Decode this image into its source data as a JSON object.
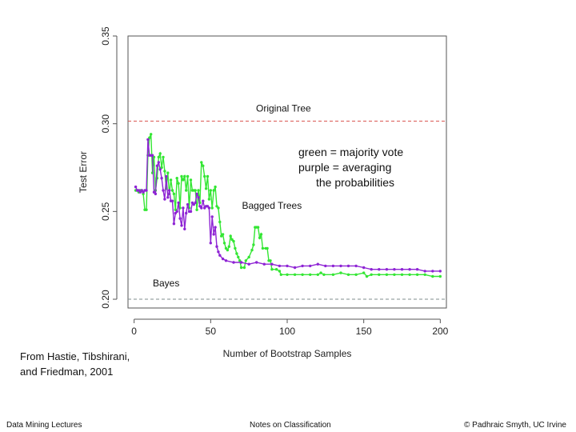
{
  "chart_data": {
    "type": "line",
    "title": "",
    "xlabel": "Number of Bootstrap Samples",
    "ylabel": "Test Error",
    "xlim": [
      -4,
      204
    ],
    "ylim": [
      0.195,
      0.35
    ],
    "xticks": [
      0,
      50,
      100,
      150,
      200
    ],
    "xtick_labels": [
      "0",
      "50",
      "100",
      "150",
      "200"
    ],
    "yticks": [
      0.2,
      0.25,
      0.3,
      0.35
    ],
    "ytick_labels": [
      "0.20",
      "0.25",
      "0.30",
      "0.35"
    ],
    "grid": false,
    "reference_lines": [
      {
        "label": "Original Tree",
        "y": 0.3015,
        "color": "#d9534f",
        "dash": "4,3"
      },
      {
        "label": "Bayes",
        "y": 0.2,
        "color": "#7f8c8d",
        "dash": "4,3"
      }
    ],
    "annotations": [
      {
        "text": "Bagged Trees",
        "x": 90,
        "y": 0.2515
      }
    ],
    "series": [
      {
        "color": "#33e633",
        "points": [
          [
            1,
            0.262
          ],
          [
            2,
            0.262
          ],
          [
            3,
            0.261
          ],
          [
            4,
            0.262
          ],
          [
            5,
            0.262
          ],
          [
            6,
            0.26
          ],
          [
            7,
            0.251
          ],
          [
            8,
            0.251
          ],
          [
            9,
            0.282
          ],
          [
            10,
            0.292
          ],
          [
            11,
            0.294
          ],
          [
            12,
            0.272
          ],
          [
            13,
            0.281
          ],
          [
            14,
            0.262
          ],
          [
            15,
            0.269
          ],
          [
            16,
            0.281
          ],
          [
            17,
            0.283
          ],
          [
            18,
            0.275
          ],
          [
            19,
            0.281
          ],
          [
            20,
            0.273
          ],
          [
            21,
            0.263
          ],
          [
            22,
            0.272
          ],
          [
            23,
            0.26
          ],
          [
            24,
            0.268
          ],
          [
            25,
            0.262
          ],
          [
            26,
            0.26
          ],
          [
            27,
            0.251
          ],
          [
            28,
            0.269
          ],
          [
            29,
            0.266
          ],
          [
            30,
            0.252
          ],
          [
            31,
            0.27
          ],
          [
            32,
            0.268
          ],
          [
            33,
            0.27
          ],
          [
            34,
            0.262
          ],
          [
            35,
            0.27
          ],
          [
            36,
            0.252
          ],
          [
            37,
            0.268
          ],
          [
            38,
            0.262
          ],
          [
            39,
            0.262
          ],
          [
            40,
            0.262
          ],
          [
            41,
            0.251
          ],
          [
            42,
            0.262
          ],
          [
            43,
            0.255
          ],
          [
            44,
            0.278
          ],
          [
            45,
            0.276
          ],
          [
            46,
            0.27
          ],
          [
            47,
            0.263
          ],
          [
            48,
            0.27
          ],
          [
            49,
            0.257
          ],
          [
            50,
            0.262
          ],
          [
            51,
            0.252
          ],
          [
            52,
            0.262
          ],
          [
            53,
            0.264
          ],
          [
            54,
            0.253
          ],
          [
            55,
            0.252
          ],
          [
            56,
            0.244
          ],
          [
            57,
            0.236
          ],
          [
            58,
            0.237
          ],
          [
            59,
            0.232
          ],
          [
            60,
            0.229
          ],
          [
            61,
            0.228
          ],
          [
            62,
            0.23
          ],
          [
            63,
            0.236
          ],
          [
            64,
            0.234
          ],
          [
            65,
            0.233
          ],
          [
            66,
            0.229
          ],
          [
            67,
            0.226
          ],
          [
            68,
            0.224
          ],
          [
            69,
            0.222
          ],
          [
            70,
            0.218
          ],
          [
            72,
            0.218
          ],
          [
            73,
            0.222
          ],
          [
            75,
            0.224
          ],
          [
            77,
            0.228
          ],
          [
            78,
            0.231
          ],
          [
            79,
            0.241
          ],
          [
            80,
            0.241
          ],
          [
            81,
            0.241
          ],
          [
            82,
            0.235
          ],
          [
            83,
            0.237
          ],
          [
            84,
            0.229
          ],
          [
            86,
            0.229
          ],
          [
            87,
            0.229
          ],
          [
            88,
            0.222
          ],
          [
            89,
            0.222
          ],
          [
            90,
            0.217
          ],
          [
            93,
            0.217
          ],
          [
            95,
            0.216
          ],
          [
            96,
            0.214
          ],
          [
            100,
            0.214
          ],
          [
            105,
            0.214
          ],
          [
            110,
            0.214
          ],
          [
            115,
            0.214
          ],
          [
            120,
            0.214
          ],
          [
            122,
            0.215
          ],
          [
            124,
            0.214
          ],
          [
            130,
            0.214
          ],
          [
            135,
            0.215
          ],
          [
            140,
            0.214
          ],
          [
            145,
            0.214
          ],
          [
            150,
            0.215
          ],
          [
            152,
            0.213
          ],
          [
            155,
            0.214
          ],
          [
            160,
            0.214
          ],
          [
            165,
            0.214
          ],
          [
            170,
            0.214
          ],
          [
            175,
            0.214
          ],
          [
            180,
            0.214
          ],
          [
            185,
            0.214
          ],
          [
            190,
            0.214
          ],
          [
            195,
            0.213
          ],
          [
            200,
            0.213
          ]
        ]
      },
      {
        "color": "#8e24d4",
        "points": [
          [
            1,
            0.264
          ],
          [
            2,
            0.262
          ],
          [
            3,
            0.262
          ],
          [
            4,
            0.261
          ],
          [
            5,
            0.262
          ],
          [
            6,
            0.261
          ],
          [
            7,
            0.262
          ],
          [
            8,
            0.262
          ],
          [
            9,
            0.291
          ],
          [
            10,
            0.282
          ],
          [
            11,
            0.282
          ],
          [
            12,
            0.282
          ],
          [
            13,
            0.261
          ],
          [
            14,
            0.26
          ],
          [
            15,
            0.276
          ],
          [
            16,
            0.278
          ],
          [
            17,
            0.274
          ],
          [
            18,
            0.269
          ],
          [
            19,
            0.262
          ],
          [
            20,
            0.257
          ],
          [
            21,
            0.27
          ],
          [
            22,
            0.258
          ],
          [
            23,
            0.262
          ],
          [
            24,
            0.256
          ],
          [
            25,
            0.256
          ],
          [
            26,
            0.243
          ],
          [
            27,
            0.249
          ],
          [
            28,
            0.25
          ],
          [
            29,
            0.255
          ],
          [
            30,
            0.246
          ],
          [
            31,
            0.242
          ],
          [
            32,
            0.252
          ],
          [
            33,
            0.24
          ],
          [
            34,
            0.249
          ],
          [
            35,
            0.254
          ],
          [
            36,
            0.25
          ],
          [
            37,
            0.25
          ],
          [
            38,
            0.255
          ],
          [
            39,
            0.254
          ],
          [
            40,
            0.255
          ],
          [
            41,
            0.26
          ],
          [
            42,
            0.258
          ],
          [
            43,
            0.253
          ],
          [
            44,
            0.252
          ],
          [
            45,
            0.256
          ],
          [
            46,
            0.252
          ],
          [
            47,
            0.253
          ],
          [
            48,
            0.253
          ],
          [
            49,
            0.252
          ],
          [
            50,
            0.232
          ],
          [
            51,
            0.247
          ],
          [
            52,
            0.237
          ],
          [
            53,
            0.241
          ],
          [
            54,
            0.23
          ],
          [
            55,
            0.227
          ],
          [
            56,
            0.225
          ],
          [
            58,
            0.223
          ],
          [
            60,
            0.222
          ],
          [
            65,
            0.221
          ],
          [
            70,
            0.221
          ],
          [
            75,
            0.22
          ],
          [
            80,
            0.221
          ],
          [
            85,
            0.22
          ],
          [
            90,
            0.22
          ],
          [
            95,
            0.219
          ],
          [
            100,
            0.219
          ],
          [
            105,
            0.218
          ],
          [
            110,
            0.219
          ],
          [
            115,
            0.219
          ],
          [
            120,
            0.22
          ],
          [
            125,
            0.219
          ],
          [
            130,
            0.219
          ],
          [
            135,
            0.219
          ],
          [
            140,
            0.219
          ],
          [
            145,
            0.219
          ],
          [
            150,
            0.218
          ],
          [
            155,
            0.217
          ],
          [
            160,
            0.217
          ],
          [
            165,
            0.217
          ],
          [
            170,
            0.217
          ],
          [
            175,
            0.217
          ],
          [
            180,
            0.217
          ],
          [
            185,
            0.217
          ],
          [
            190,
            0.216
          ],
          [
            195,
            0.216
          ],
          [
            200,
            0.216
          ]
        ]
      }
    ]
  },
  "legend_note": {
    "line1": "green = majority vote",
    "line2": "purple = averaging",
    "line3": "the probabilities"
  },
  "citation": {
    "line1": "From Hastie, Tibshirani,",
    "line2": "and Friedman, 2001"
  },
  "footer": {
    "left": "Data Mining Lectures",
    "center": "Notes on Classification",
    "right": "© Padhraic Smyth, UC Irvine"
  }
}
